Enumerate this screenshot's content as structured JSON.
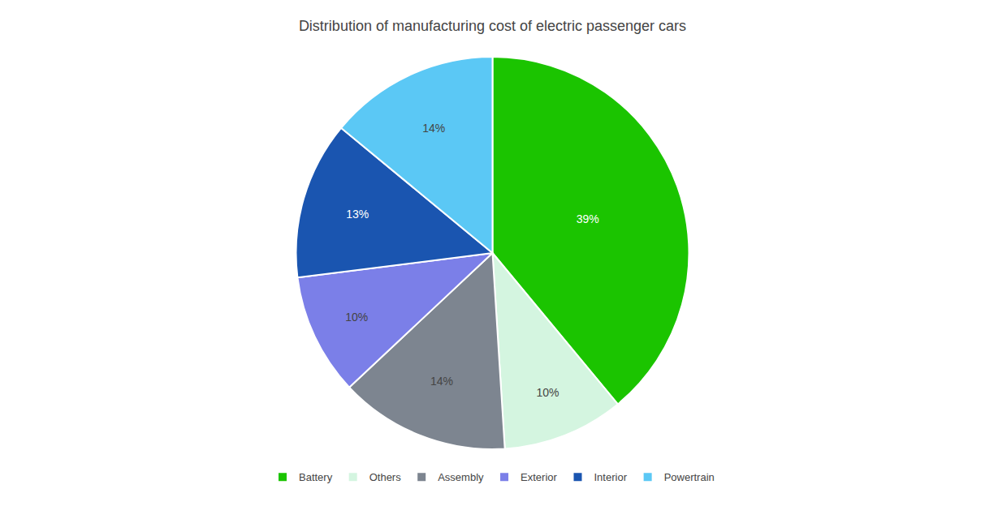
{
  "chart_data": {
    "type": "pie",
    "title": "Distribution of manufacturing cost of electric passenger cars",
    "categories": [
      "Battery",
      "Others",
      "Assembly",
      "Exterior",
      "Interior",
      "Powertrain"
    ],
    "values": [
      39,
      10,
      14,
      10,
      13,
      14
    ],
    "value_labels": [
      "39%",
      "10%",
      "14%",
      "10%",
      "13%",
      "14%"
    ],
    "colors": [
      "#1bc400",
      "#d4f5e0",
      "#7d8590",
      "#7b7fe8",
      "#1a55b0",
      "#5bc8f5"
    ],
    "data_labels": true,
    "legend": "bottom"
  }
}
